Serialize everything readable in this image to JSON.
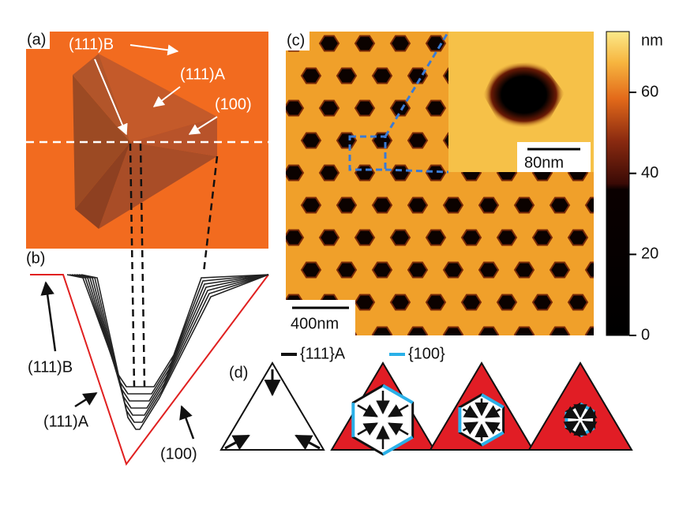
{
  "panels": {
    "a": {
      "label": "(a)",
      "annotations": [
        "(111)B",
        "(111)A",
        "(100)"
      ]
    },
    "b": {
      "label": "(b)",
      "annotations": [
        "(111)B",
        "(111)A",
        "(100)"
      ]
    },
    "c": {
      "label": "(c)",
      "scale_bar": "400nm",
      "inset_scale_bar": "80nm"
    },
    "d": {
      "label": "(d)",
      "legend": [
        "{111}A",
        "{100}"
      ]
    }
  },
  "colorbar": {
    "label": "nm",
    "lim": [
      0,
      75
    ],
    "ticks": [
      0,
      20,
      40,
      60
    ]
  }
}
